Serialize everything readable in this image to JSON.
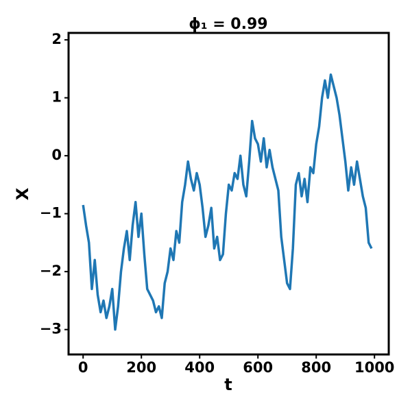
{
  "chart_data": {
    "type": "line",
    "title": "ϕ₁ = 0.99",
    "xlabel": "t",
    "ylabel": "X",
    "x": [
      0,
      10,
      20,
      30,
      40,
      50,
      60,
      70,
      80,
      90,
      100,
      110,
      120,
      130,
      140,
      150,
      160,
      170,
      180,
      190,
      200,
      210,
      220,
      230,
      240,
      250,
      260,
      270,
      280,
      290,
      300,
      310,
      320,
      330,
      340,
      350,
      360,
      370,
      380,
      390,
      400,
      410,
      420,
      430,
      440,
      450,
      460,
      470,
      480,
      490,
      500,
      510,
      520,
      530,
      540,
      550,
      560,
      570,
      580,
      590,
      600,
      610,
      620,
      630,
      640,
      650,
      660,
      670,
      680,
      690,
      700,
      710,
      720,
      730,
      740,
      750,
      760,
      770,
      780,
      790,
      800,
      810,
      820,
      830,
      840,
      850,
      860,
      870,
      880,
      890,
      900,
      910,
      920,
      930,
      940,
      950,
      960,
      970,
      980,
      990
    ],
    "series": [
      {
        "name": "X",
        "color": "#1f77b4",
        "values": [
          -0.85,
          -1.2,
          -1.5,
          -2.3,
          -1.8,
          -2.4,
          -2.7,
          -2.5,
          -2.8,
          -2.6,
          -2.3,
          -3.0,
          -2.6,
          -2.0,
          -1.6,
          -1.3,
          -1.8,
          -1.2,
          -0.8,
          -1.4,
          -1.0,
          -1.7,
          -2.3,
          -2.4,
          -2.5,
          -2.7,
          -2.6,
          -2.8,
          -2.2,
          -2.0,
          -1.6,
          -1.8,
          -1.3,
          -1.5,
          -0.8,
          -0.5,
          -0.1,
          -0.4,
          -0.6,
          -0.3,
          -0.5,
          -0.9,
          -1.4,
          -1.2,
          -0.9,
          -1.6,
          -1.4,
          -1.8,
          -1.7,
          -1.0,
          -0.5,
          -0.6,
          -0.3,
          -0.4,
          0.0,
          -0.5,
          -0.7,
          -0.1,
          0.6,
          0.3,
          0.2,
          -0.1,
          0.3,
          -0.2,
          0.1,
          -0.2,
          -0.4,
          -0.6,
          -1.4,
          -1.8,
          -2.2,
          -2.3,
          -1.6,
          -0.5,
          -0.3,
          -0.7,
          -0.4,
          -0.8,
          -0.2,
          -0.3,
          0.2,
          0.5,
          1.0,
          1.3,
          1.0,
          1.4,
          1.2,
          1.0,
          0.7,
          0.3,
          -0.1,
          -0.6,
          -0.2,
          -0.5,
          -0.1,
          -0.4,
          -0.7,
          -0.9,
          -1.5,
          -1.6
        ]
      }
    ],
    "xlim": [
      -49.95,
      1048.95
    ],
    "xticks": [
      0,
      200,
      400,
      600,
      800,
      1000
    ],
    "ylim": [
      -3.43,
      2.12
    ],
    "yticks": [
      {
        "value": -3,
        "label": "−3"
      },
      {
        "value": -2,
        "label": "−2"
      },
      {
        "value": -1,
        "label": "−1"
      },
      0,
      1,
      2
    ]
  }
}
